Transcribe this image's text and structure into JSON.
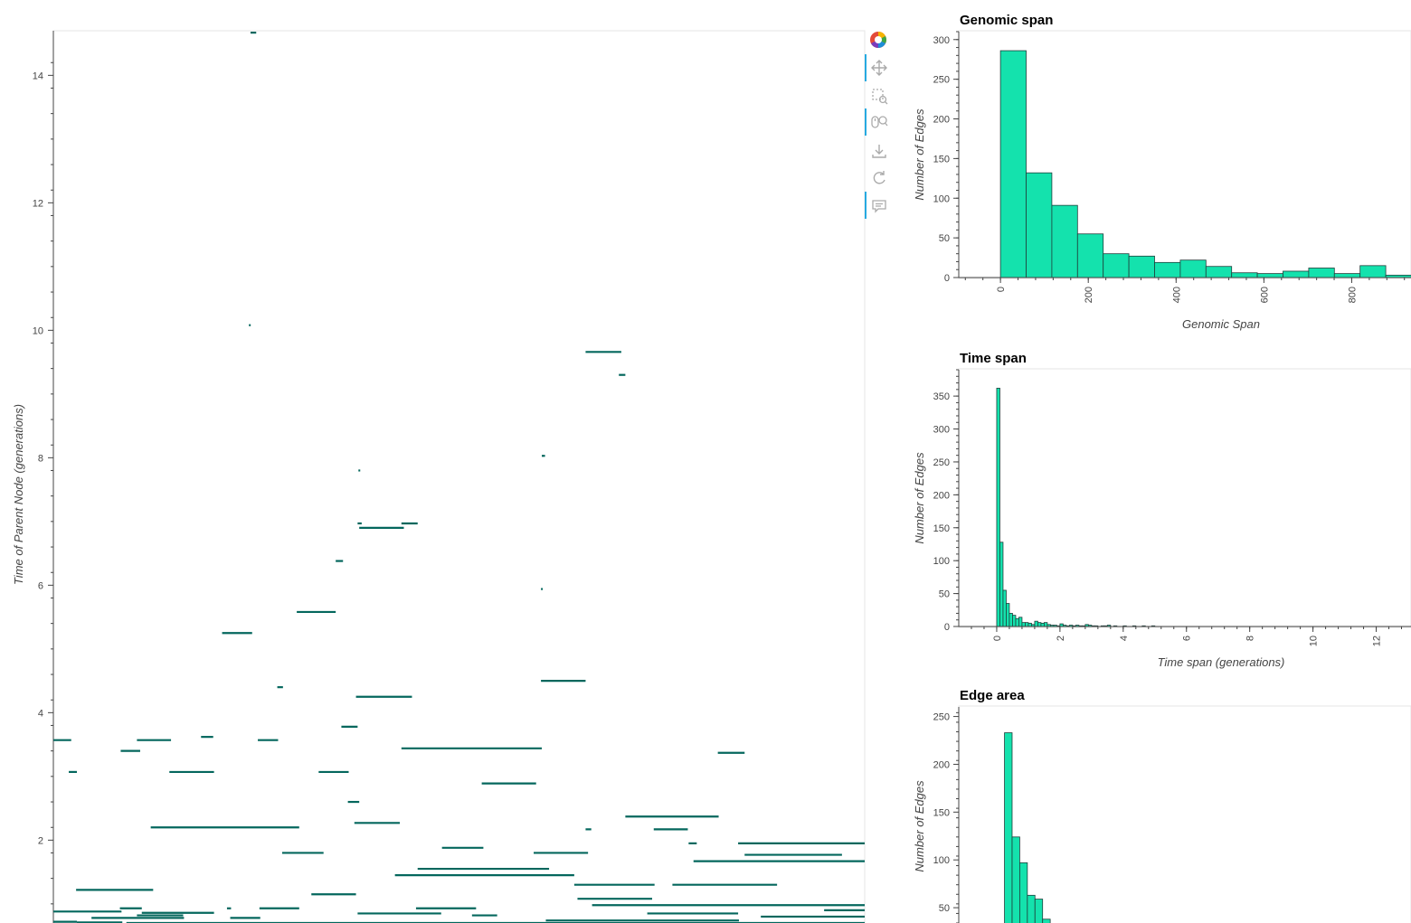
{
  "toolbar": {
    "tools": [
      {
        "name": "bokeh-logo-icon",
        "active": false
      },
      {
        "name": "pan-icon",
        "active": true
      },
      {
        "name": "box-zoom-icon",
        "active": false
      },
      {
        "name": "wheel-zoom-icon",
        "active": true
      },
      {
        "name": "save-icon",
        "active": false
      },
      {
        "name": "reset-icon",
        "active": false
      },
      {
        "name": "hover-icon",
        "active": true
      }
    ]
  },
  "colors": {
    "segment": "#04675d",
    "bar_fill": "#14e2ad",
    "bar_stroke": "#1f3f3b",
    "axis": "#444444"
  },
  "chart_data": [
    {
      "type": "segments",
      "name": "edges",
      "ylabel": "Time of Parent Node (generations)",
      "xlim": [
        0,
        1000
      ],
      "ylim": [
        0.7,
        14.7
      ],
      "yticks": [
        2,
        4,
        6,
        8,
        10,
        12,
        14
      ],
      "segments": [
        {
          "x0": 243,
          "x1": 250,
          "y": 14.67
        },
        {
          "x0": 241,
          "x1": 243,
          "y": 10.08
        },
        {
          "x0": 656,
          "x1": 700,
          "y": 9.66
        },
        {
          "x0": 697,
          "x1": 705,
          "y": 9.3
        },
        {
          "x0": 602,
          "x1": 606,
          "y": 8.03
        },
        {
          "x0": 376,
          "x1": 378,
          "y": 7.8
        },
        {
          "x0": 375,
          "x1": 380,
          "y": 6.97
        },
        {
          "x0": 429,
          "x1": 449,
          "y": 6.97
        },
        {
          "x0": 377,
          "x1": 432,
          "y": 6.9
        },
        {
          "x0": 348,
          "x1": 357,
          "y": 6.38
        },
        {
          "x0": 601,
          "x1": 603,
          "y": 5.94
        },
        {
          "x0": 300,
          "x1": 348,
          "y": 5.58
        },
        {
          "x0": 208,
          "x1": 245,
          "y": 5.25
        },
        {
          "x0": 276,
          "x1": 283,
          "y": 4.4
        },
        {
          "x0": 601,
          "x1": 656,
          "y": 4.5
        },
        {
          "x0": 373,
          "x1": 442,
          "y": 4.25
        },
        {
          "x0": 355,
          "x1": 375,
          "y": 3.78
        },
        {
          "x0": 182,
          "x1": 197,
          "y": 3.62
        },
        {
          "x0": 0,
          "x1": 22,
          "y": 3.57
        },
        {
          "x0": 103,
          "x1": 145,
          "y": 3.57
        },
        {
          "x0": 252,
          "x1": 277,
          "y": 3.57
        },
        {
          "x0": 83,
          "x1": 107,
          "y": 3.4
        },
        {
          "x0": 429,
          "x1": 602,
          "y": 3.44
        },
        {
          "x0": 819,
          "x1": 852,
          "y": 3.37
        },
        {
          "x0": 19,
          "x1": 29,
          "y": 3.07
        },
        {
          "x0": 143,
          "x1": 198,
          "y": 3.07
        },
        {
          "x0": 327,
          "x1": 364,
          "y": 3.07
        },
        {
          "x0": 528,
          "x1": 595,
          "y": 2.89
        },
        {
          "x0": 363,
          "x1": 377,
          "y": 2.6
        },
        {
          "x0": 705,
          "x1": 820,
          "y": 2.37
        },
        {
          "x0": 371,
          "x1": 427,
          "y": 2.27
        },
        {
          "x0": 120,
          "x1": 303,
          "y": 2.2
        },
        {
          "x0": 656,
          "x1": 663,
          "y": 2.17
        },
        {
          "x0": 740,
          "x1": 782,
          "y": 2.17
        },
        {
          "x0": 783,
          "x1": 793,
          "y": 1.95
        },
        {
          "x0": 844,
          "x1": 1000,
          "y": 1.95
        },
        {
          "x0": 479,
          "x1": 530,
          "y": 1.88
        },
        {
          "x0": 282,
          "x1": 333,
          "y": 1.8
        },
        {
          "x0": 592,
          "x1": 659,
          "y": 1.8
        },
        {
          "x0": 852,
          "x1": 972,
          "y": 1.77
        },
        {
          "x0": 789,
          "x1": 1000,
          "y": 1.67
        },
        {
          "x0": 449,
          "x1": 611,
          "y": 1.55
        },
        {
          "x0": 421,
          "x1": 642,
          "y": 1.45
        },
        {
          "x0": 642,
          "x1": 741,
          "y": 1.3
        },
        {
          "x0": 763,
          "x1": 892,
          "y": 1.3
        },
        {
          "x0": 28,
          "x1": 123,
          "y": 1.22
        },
        {
          "x0": 318,
          "x1": 373,
          "y": 1.15
        },
        {
          "x0": 646,
          "x1": 738,
          "y": 1.08
        },
        {
          "x0": 664,
          "x1": 1000,
          "y": 0.98
        },
        {
          "x0": 82,
          "x1": 109,
          "y": 0.93
        },
        {
          "x0": 214,
          "x1": 219,
          "y": 0.93
        },
        {
          "x0": 254,
          "x1": 303,
          "y": 0.93
        },
        {
          "x0": 447,
          "x1": 521,
          "y": 0.93
        },
        {
          "x0": 0,
          "x1": 84,
          "y": 0.88
        },
        {
          "x0": 109,
          "x1": 198,
          "y": 0.86
        },
        {
          "x0": 375,
          "x1": 478,
          "y": 0.85
        },
        {
          "x0": 732,
          "x1": 844,
          "y": 0.85
        },
        {
          "x0": 950,
          "x1": 1000,
          "y": 0.9
        },
        {
          "x0": 103,
          "x1": 160,
          "y": 0.82
        },
        {
          "x0": 516,
          "x1": 547,
          "y": 0.82
        },
        {
          "x0": 872,
          "x1": 1000,
          "y": 0.8
        },
        {
          "x0": 47,
          "x1": 161,
          "y": 0.78
        },
        {
          "x0": 218,
          "x1": 255,
          "y": 0.78
        },
        {
          "x0": 607,
          "x1": 845,
          "y": 0.74
        },
        {
          "x0": 0,
          "x1": 29,
          "y": 0.72
        },
        {
          "x0": 29,
          "x1": 85,
          "y": 0.71
        },
        {
          "x0": 90,
          "x1": 1000,
          "y": 0.7
        },
        {
          "x0": 235,
          "x1": 730,
          "y": 0.69
        }
      ]
    },
    {
      "type": "histogram",
      "name": "genomic",
      "title": "Genomic span",
      "xlabel": "Genomic Span",
      "ylabel": "Number of Edges",
      "xlim": [
        -95,
        935
      ],
      "ylim": [
        0,
        310
      ],
      "bin_width": 58.5,
      "bin_start": 0,
      "values": [
        286,
        132,
        91,
        55,
        30,
        27,
        19,
        22,
        14,
        6,
        5,
        8,
        12,
        5,
        15,
        3
      ],
      "xticks": [
        0,
        200,
        400,
        600,
        800
      ],
      "yticks": [
        0,
        50,
        100,
        150,
        200,
        250,
        300
      ]
    },
    {
      "type": "histogram",
      "name": "time",
      "title": "Time span",
      "xlabel": "Time span (generations)",
      "ylabel": "Number of Edges",
      "xlim": [
        -1.2,
        13.1
      ],
      "ylim": [
        0,
        390
      ],
      "bin_width": 0.1,
      "bin_start": 0,
      "values": [
        362,
        128,
        55,
        35,
        20,
        17,
        12,
        14,
        6,
        6,
        5,
        3,
        8,
        6,
        5,
        6,
        3,
        2,
        2,
        1,
        4,
        2,
        1,
        2,
        1,
        2,
        1,
        1,
        3,
        2,
        1,
        1,
        0,
        1,
        1,
        2,
        0,
        1,
        0,
        0,
        1,
        0,
        0,
        1,
        0,
        0,
        1,
        0,
        0,
        1
      ],
      "xticks": [
        0,
        2,
        4,
        6,
        8,
        10,
        12
      ],
      "yticks": [
        0,
        50,
        100,
        150,
        200,
        250,
        300,
        350
      ]
    },
    {
      "type": "histogram",
      "name": "area",
      "title": "Edge area",
      "xlabel": "",
      "ylabel": "Number of Edges",
      "xlim": [
        -18,
        160
      ],
      "ylim": [
        34,
        260
      ],
      "bin_width": 3,
      "bin_start": 0,
      "values": [
        233,
        124,
        97,
        63,
        59,
        38
      ],
      "xticks": [],
      "yticks": [
        50,
        100,
        150,
        200,
        250
      ]
    }
  ]
}
